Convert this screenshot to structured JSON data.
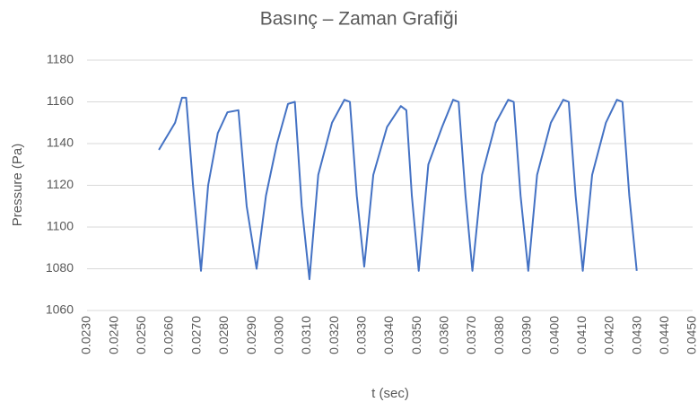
{
  "chart_data": {
    "type": "line",
    "title": "Basınç – Zaman Grafiği",
    "xlabel": "t (sec)",
    "ylabel": "Pressure (Pa)",
    "x": [
      0.02561,
      0.0262,
      0.02645,
      0.0266,
      0.02685,
      0.02714,
      0.0274,
      0.02775,
      0.0281,
      0.0285,
      0.0288,
      0.02916,
      0.0295,
      0.0299,
      0.0303,
      0.03055,
      0.0308,
      0.03108,
      0.0314,
      0.0319,
      0.03235,
      0.03255,
      0.0328,
      0.03307,
      0.0334,
      0.0339,
      0.0344,
      0.0346,
      0.0348,
      0.03505,
      0.0354,
      0.0359,
      0.0363,
      0.0365,
      0.03675,
      0.037,
      0.03735,
      0.03785,
      0.0383,
      0.0385,
      0.03875,
      0.03903,
      0.03935,
      0.03985,
      0.0403,
      0.0405,
      0.04075,
      0.04101,
      0.04135,
      0.04185,
      0.04225,
      0.04245,
      0.0427,
      0.04297
    ],
    "series": [
      {
        "name": "Pressure",
        "color": "#4472c4",
        "values": [
          1137,
          1150,
          1162,
          1162,
          1120,
          1079,
          1120,
          1145,
          1155,
          1156,
          1110,
          1080,
          1115,
          1140,
          1159,
          1160,
          1110,
          1075,
          1125,
          1150,
          1161,
          1160,
          1115,
          1081,
          1125,
          1148,
          1158,
          1156,
          1115,
          1079,
          1130,
          1148,
          1161,
          1160,
          1115,
          1079,
          1125,
          1150,
          1161,
          1160,
          1115,
          1079,
          1125,
          1150,
          1161,
          1160,
          1115,
          1079,
          1125,
          1150,
          1161,
          1160,
          1115,
          1079
        ]
      }
    ],
    "xlim": [
      0.023,
      0.045
    ],
    "xticks": [
      {
        "value": 0.023,
        "label": "0.0230"
      },
      {
        "value": 0.024,
        "label": "0.0240"
      },
      {
        "value": 0.025,
        "label": "0.0250"
      },
      {
        "value": 0.026,
        "label": "0.0260"
      },
      {
        "value": 0.027,
        "label": "0.0270"
      },
      {
        "value": 0.028,
        "label": "0.0280"
      },
      {
        "value": 0.029,
        "label": "0.0290"
      },
      {
        "value": 0.03,
        "label": "0.0300"
      },
      {
        "value": 0.031,
        "label": "0.0310"
      },
      {
        "value": 0.032,
        "label": "0.0320"
      },
      {
        "value": 0.033,
        "label": "0.0330"
      },
      {
        "value": 0.034,
        "label": "0.0340"
      },
      {
        "value": 0.035,
        "label": "0.0350"
      },
      {
        "value": 0.036,
        "label": "0.0360"
      },
      {
        "value": 0.037,
        "label": "0.0370"
      },
      {
        "value": 0.038,
        "label": "0.0380"
      },
      {
        "value": 0.039,
        "label": "0.0390"
      },
      {
        "value": 0.04,
        "label": "0.0400"
      },
      {
        "value": 0.041,
        "label": "0.0410"
      },
      {
        "value": 0.042,
        "label": "0.0420"
      },
      {
        "value": 0.043,
        "label": "0.0430"
      },
      {
        "value": 0.044,
        "label": "0.0440"
      },
      {
        "value": 0.045,
        "label": "0.0450"
      }
    ],
    "ylim": [
      1060,
      1180
    ],
    "yticks": [
      1060,
      1080,
      1100,
      1120,
      1140,
      1160,
      1180
    ],
    "grid": true
  }
}
